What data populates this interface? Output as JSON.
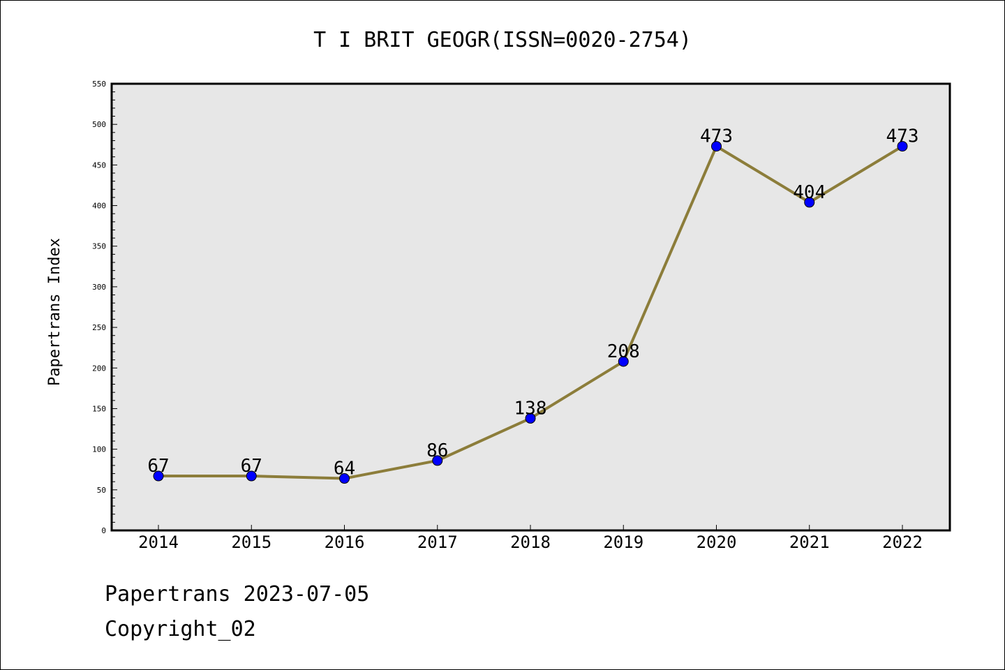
{
  "chart_data": {
    "type": "line",
    "title": "T I BRIT GEOGR(ISSN=0020-2754)",
    "xlabel": "",
    "ylabel": "Papertrans Index",
    "categories": [
      "2014",
      "2015",
      "2016",
      "2017",
      "2018",
      "2019",
      "2020",
      "2021",
      "2022"
    ],
    "series": [
      {
        "values": [
          67,
          67,
          64,
          86,
          138,
          208,
          473,
          404,
          473
        ]
      }
    ],
    "ylim": [
      0,
      550
    ],
    "yticks": [
      0,
      50,
      100,
      150,
      200,
      250,
      300,
      350,
      400,
      450,
      500,
      550
    ],
    "grid": false,
    "data_labels": true,
    "colors": {
      "line": "#8c7d3a",
      "marker": "#0000ff",
      "plot_background": "#e7e7e7"
    }
  },
  "footer": {
    "source_line": "Papertrans 2023-07-05",
    "copyright_line": "Copyright_02"
  }
}
